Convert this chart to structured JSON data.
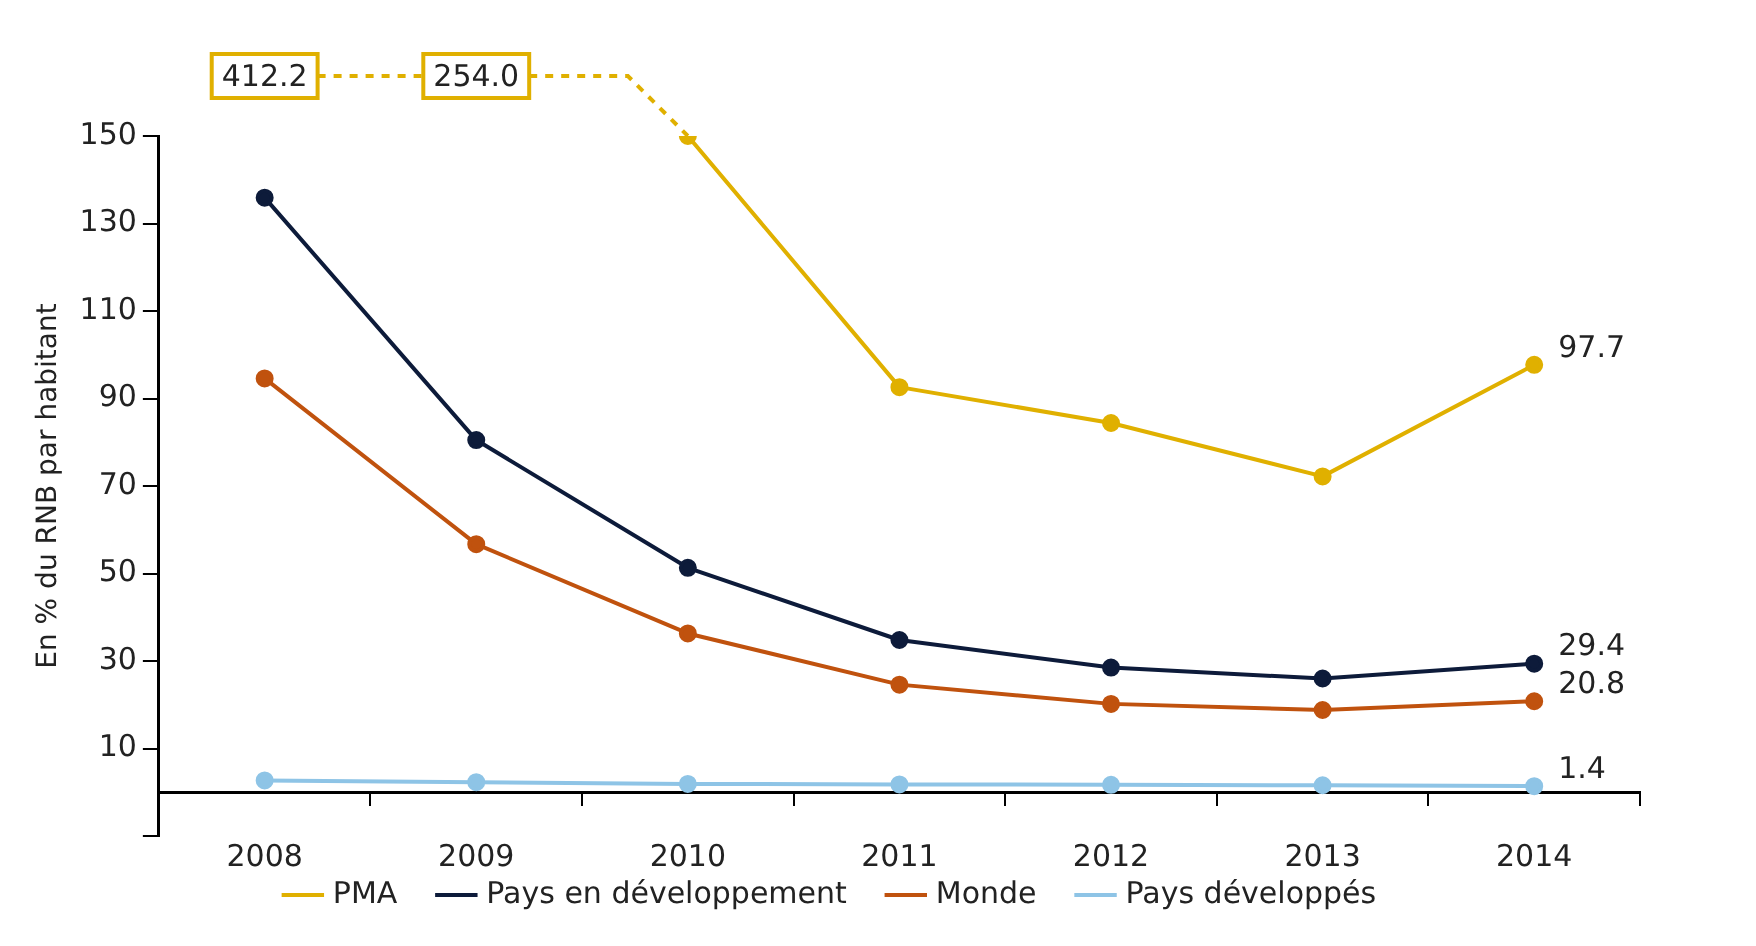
{
  "chart_data": {
    "type": "line",
    "ylabel": "En % du RNB par habitant",
    "categories": [
      "2008",
      "2009",
      "2010",
      "2011",
      "2012",
      "2013",
      "2014"
    ],
    "series": [
      {
        "name": "PMA",
        "color": "#e0b000",
        "values": [
          null,
          null,
          150,
          92.6,
          84.4,
          72.2,
          97.7
        ],
        "value_labels": [
          null,
          null,
          null,
          null,
          null,
          null,
          "97.7"
        ]
      },
      {
        "name": "Pays en développement",
        "color": "#0d1b3a",
        "values": [
          135.9,
          80.5,
          51.3,
          34.8,
          28.5,
          26.0,
          29.4
        ],
        "value_labels": [
          null,
          null,
          null,
          null,
          null,
          null,
          "29.4"
        ]
      },
      {
        "name": "Monde",
        "color": "#c0520e",
        "values": [
          94.6,
          56.7,
          36.3,
          24.6,
          20.2,
          18.8,
          20.8
        ],
        "value_labels": [
          null,
          null,
          null,
          null,
          null,
          null,
          "20.8"
        ]
      },
      {
        "name": "Pays développés",
        "color": "#8ec4e6",
        "values": [
          2.7,
          2.3,
          1.9,
          1.8,
          1.7,
          1.6,
          1.4
        ],
        "value_labels": [
          null,
          null,
          null,
          null,
          null,
          null,
          "1.4"
        ]
      }
    ],
    "annotations": [
      "412.2",
      "254.0"
    ],
    "ylim": [
      -10,
      150
    ],
    "yticks": [
      {
        "value": -10,
        "label": null
      },
      10,
      30,
      50,
      70,
      90,
      110,
      130,
      150
    ],
    "grid": false,
    "legend": "bottom",
    "marker": "circle",
    "line_style": "solid"
  }
}
